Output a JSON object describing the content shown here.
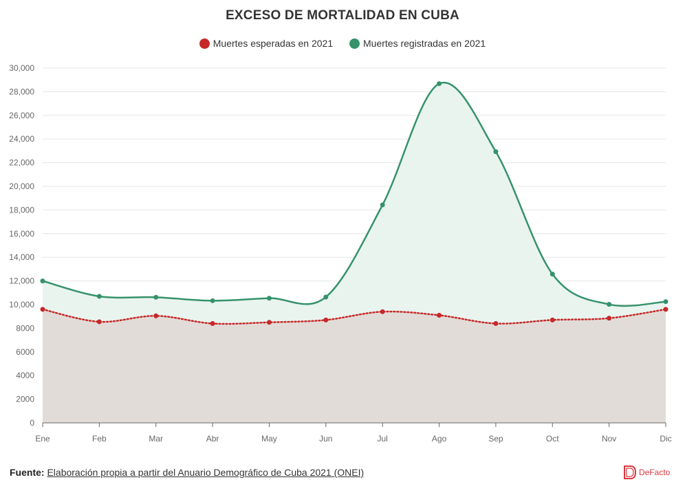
{
  "chart_data": {
    "type": "area",
    "title": "EXCESO DE MORTALIDAD EN CUBA",
    "categories": [
      "Ene",
      "Feb",
      "Mar",
      "Abr",
      "May",
      "Jun",
      "Jul",
      "Ago",
      "Sep",
      "Oct",
      "Nov",
      "Dic"
    ],
    "series": [
      {
        "name": "Muertes esperadas en 2021",
        "color": "#c62828",
        "fill": "#e2dcd8",
        "line_style": "dotted",
        "values": [
          9600,
          8550,
          9050,
          8400,
          8500,
          8700,
          9400,
          9100,
          8400,
          8700,
          8850,
          9600
        ]
      },
      {
        "name": "Muertes registradas en 2021",
        "color": "#35926a",
        "fill": "#e9f4ef",
        "line_style": "solid",
        "values": [
          12000,
          10700,
          10620,
          10330,
          10540,
          10640,
          18430,
          28680,
          22930,
          12580,
          10020,
          10250
        ]
      }
    ],
    "ylim": [
      0,
      30000
    ],
    "yticks": [
      0,
      2000,
      4000,
      6000,
      8000,
      10000,
      12000,
      14000,
      16000,
      18000,
      20000,
      22000,
      24000,
      26000,
      28000,
      30000
    ],
    "ytick_labels": [
      "0",
      "2000",
      "4000",
      "6000",
      "8000",
      "10,000",
      "12,000",
      "14,000",
      "16,000",
      "18,000",
      "20,000",
      "22,000",
      "24,000",
      "26,000",
      "28,000",
      "30,000"
    ],
    "grid": true,
    "legend_position": "top-center"
  },
  "footer": {
    "label": "Fuente:",
    "text": "Elaboración propia a partir del Anuario Demográfico de Cuba 2021 (ONEI)"
  },
  "brand": {
    "name": "DeFacto",
    "color": "#d8373f"
  }
}
